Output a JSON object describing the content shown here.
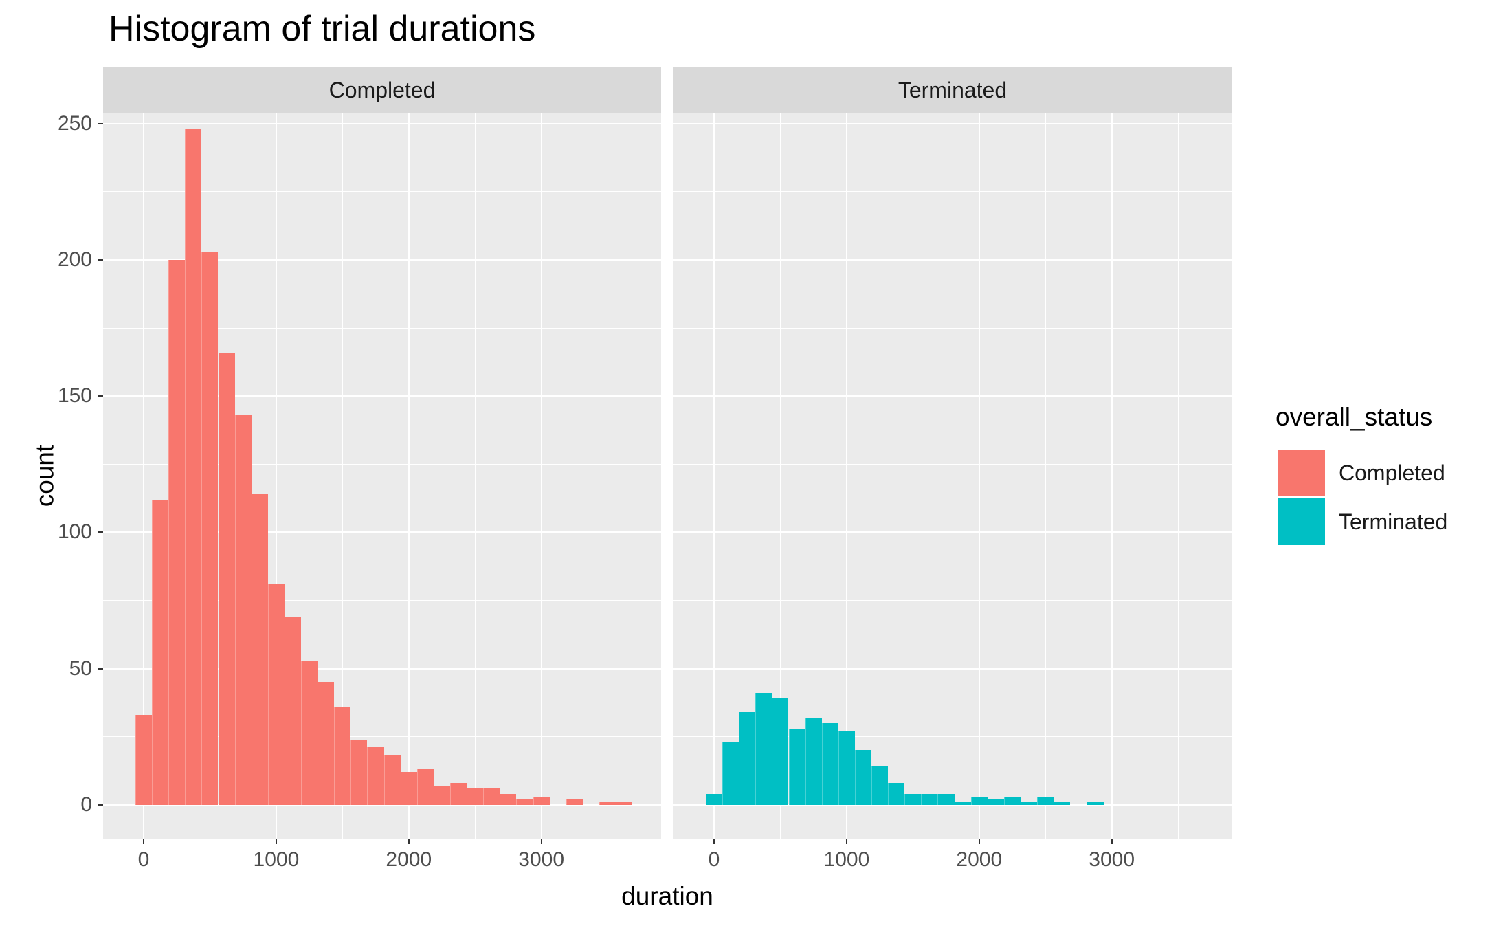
{
  "title": "Histogram of trial durations",
  "colors": {
    "completed": "#F8766D",
    "terminated": "#00BFC4",
    "panel_background": "#EBEBEB",
    "strip_background": "#D9D9D9",
    "gridline": "#FFFFFF",
    "tick_text": "#4D4D4D",
    "text": "#000000"
  },
  "legend": {
    "title": "overall_status",
    "position": "right",
    "items": [
      {
        "label": "Completed",
        "color": "#F8766D"
      },
      {
        "label": "Terminated",
        "color": "#00BFC4"
      }
    ]
  },
  "chart_data": {
    "type": "bar",
    "subtype": "faceted-histogram",
    "title": "Histogram of trial durations",
    "xlabel": "duration",
    "ylabel": "count",
    "legend_title": "overall_status",
    "legend_position": "right",
    "grid": true,
    "binwidth": 125,
    "xlim": [
      -306,
      3904
    ],
    "ylim": [
      -12.44,
      253.74
    ],
    "x_ticks": [
      0,
      1000,
      2000,
      3000
    ],
    "x_minor_ticks": [
      500,
      1500,
      2500,
      3500
    ],
    "y_ticks": [
      0,
      50,
      100,
      150,
      200,
      250
    ],
    "y_minor_ticks": [
      25,
      75,
      125,
      175,
      225
    ],
    "facets": [
      {
        "label": "Completed",
        "series": "Completed",
        "color": "#F8766D",
        "bin_centers": [
          0,
          125,
          250,
          375,
          500,
          625,
          750,
          875,
          1000,
          1125,
          1250,
          1375,
          1500,
          1625,
          1750,
          1875,
          2000,
          2125,
          2250,
          2375,
          2500,
          2625,
          2750,
          2875,
          3000,
          3125,
          3250,
          3375,
          3500,
          3625
        ],
        "counts": [
          33,
          112,
          200,
          248,
          203,
          166,
          143,
          114,
          81,
          69,
          53,
          45,
          36,
          24,
          21,
          18,
          12,
          13,
          7,
          8,
          6,
          6,
          4,
          2,
          3,
          0,
          2,
          0,
          1,
          1
        ]
      },
      {
        "label": "Terminated",
        "series": "Terminated",
        "color": "#00BFC4",
        "bin_centers": [
          0,
          125,
          250,
          375,
          500,
          625,
          750,
          875,
          1000,
          1125,
          1250,
          1375,
          1500,
          1625,
          1750,
          1875,
          2000,
          2125,
          2250,
          2375,
          2500,
          2625,
          2750,
          2875
        ],
        "counts": [
          4,
          23,
          34,
          41,
          39,
          28,
          32,
          30,
          27,
          20,
          14,
          8,
          4,
          4,
          4,
          1,
          3,
          2,
          3,
          1,
          3,
          1,
          0,
          1
        ]
      }
    ]
  }
}
